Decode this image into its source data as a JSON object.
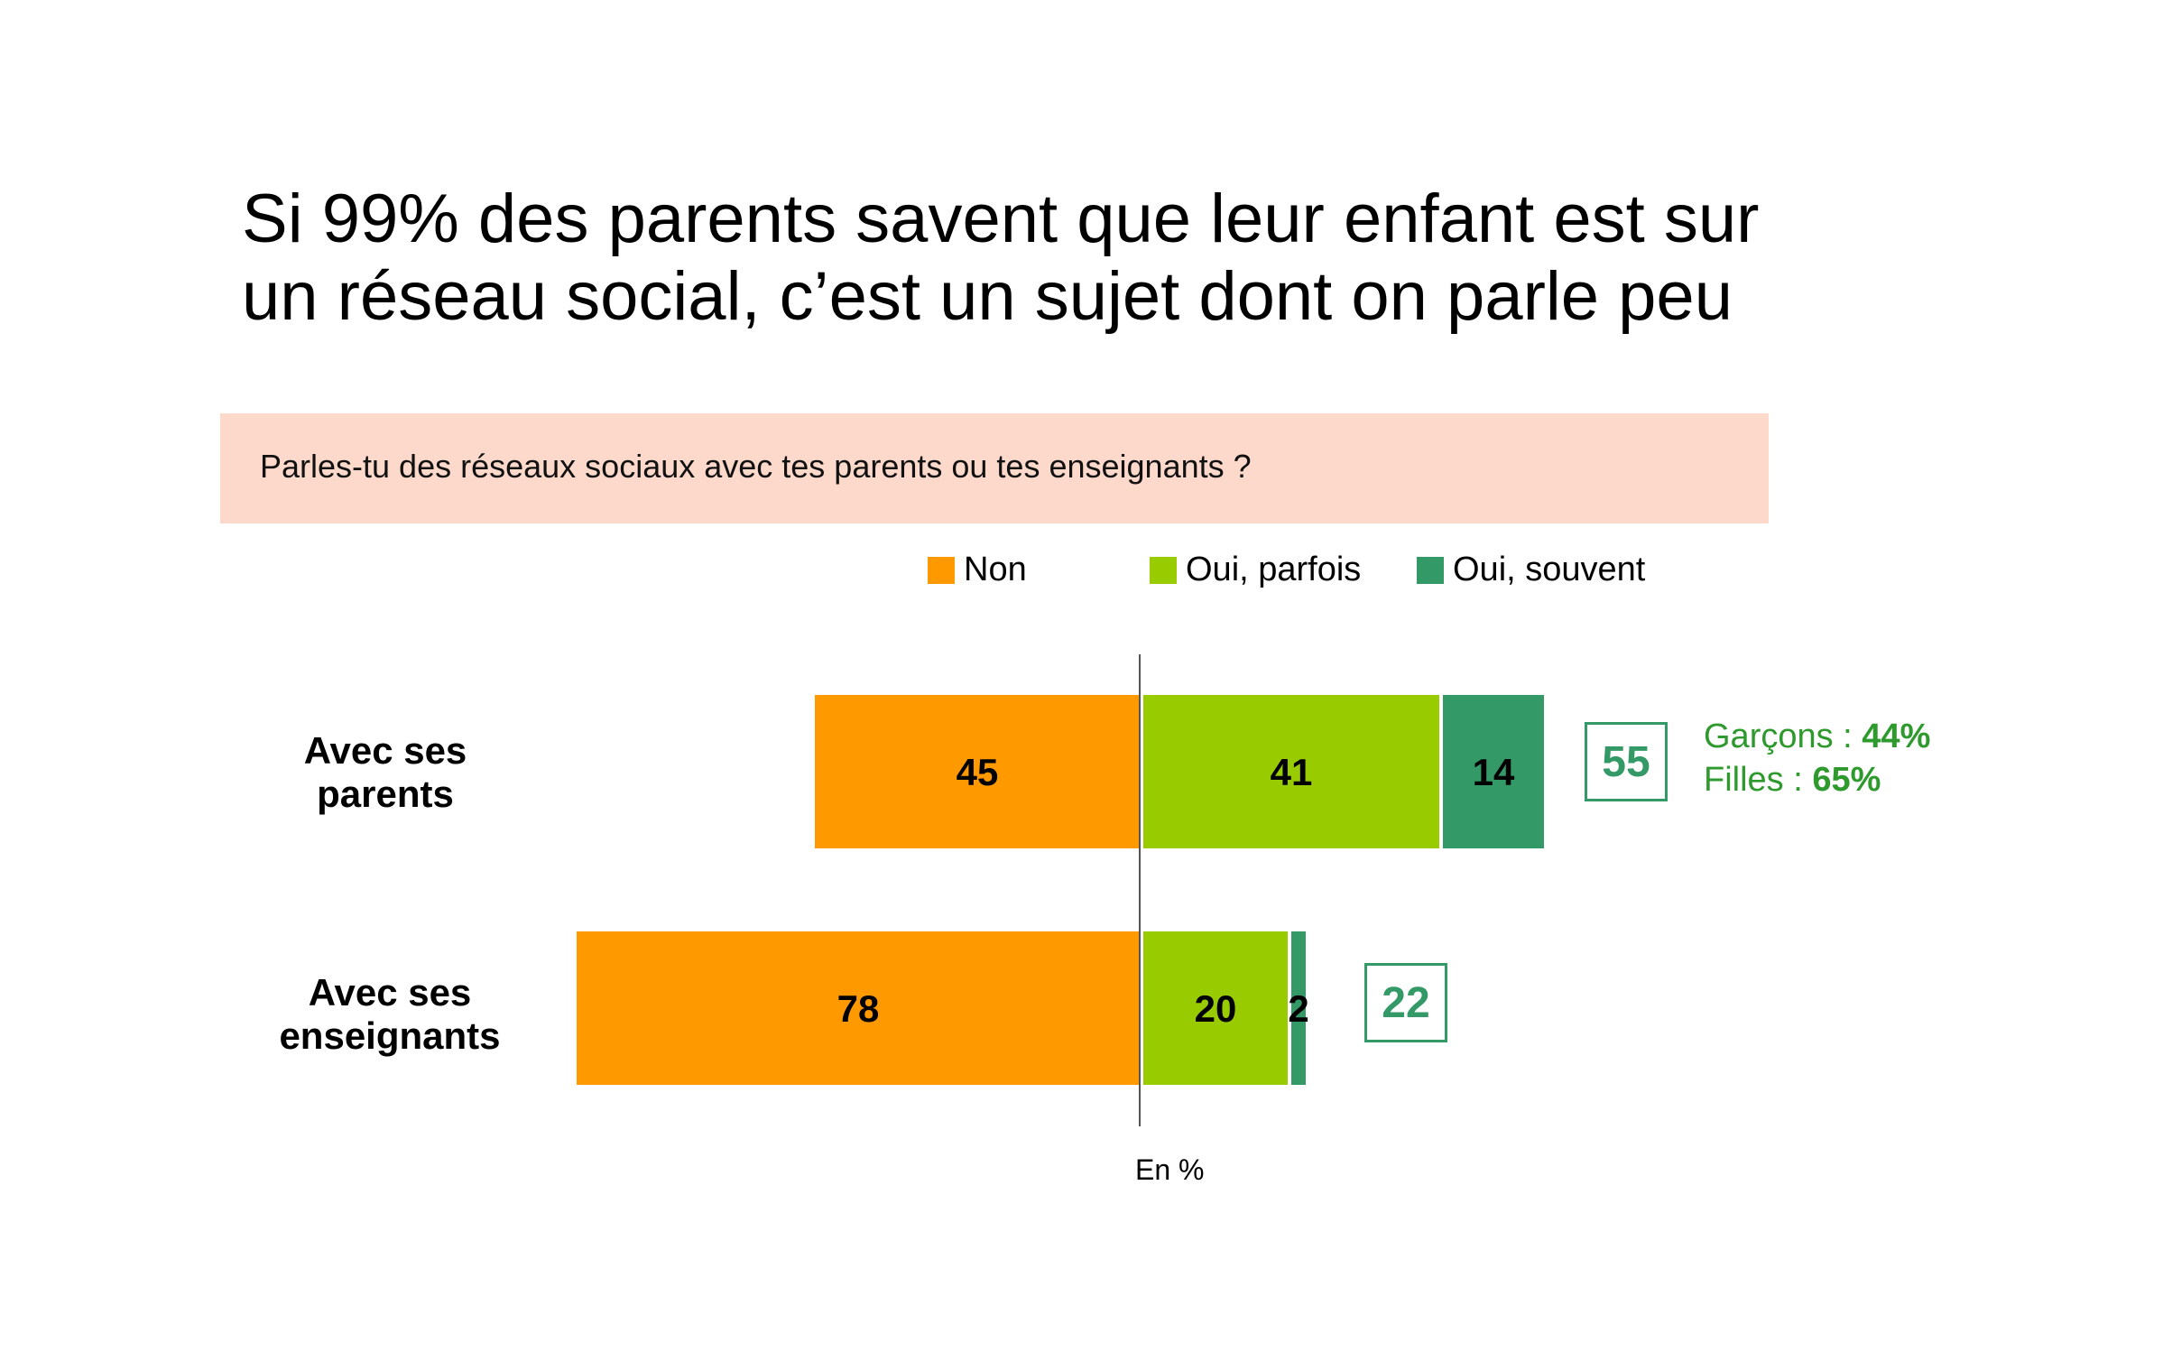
{
  "title_line1": "Si 99% des parents savent que leur enfant est sur",
  "title_line2": "un réseau social, c’est un sujet dont on parle peu",
  "question": "Parles-tu des réseaux sociaux avec tes parents ou tes enseignants ?",
  "footnote": "En %",
  "colors": {
    "non": "#ff9900",
    "oui_parfois": "#99cc00",
    "oui_souvent": "#339966",
    "question_bg": "#fdd9cc",
    "annotation": "#2e9a2e"
  },
  "legend": [
    {
      "label": "Non",
      "color": "#ff9900"
    },
    {
      "label": "Oui, parfois",
      "color": "#99cc00"
    },
    {
      "label": "Oui, souvent",
      "color": "#339966"
    }
  ],
  "annotation": {
    "garcons_label": "Garçons :",
    "garcons_value": "44%",
    "filles_label": "Filles :",
    "filles_value": "65%"
  },
  "chart_data": {
    "type": "bar",
    "orientation": "horizontal-diverging",
    "unit": "%",
    "categories": [
      {
        "line1": "Avec ses",
        "line2": "parents"
      },
      {
        "line1": "Avec ses",
        "line2": "enseignants"
      }
    ],
    "series": [
      {
        "name": "Non",
        "values": [
          45,
          78
        ]
      },
      {
        "name": "Oui, parfois",
        "values": [
          41,
          20
        ]
      },
      {
        "name": "Oui, souvent",
        "values": [
          14,
          2
        ]
      }
    ],
    "totals_oui": [
      55,
      22
    ],
    "legend_position": "top"
  }
}
